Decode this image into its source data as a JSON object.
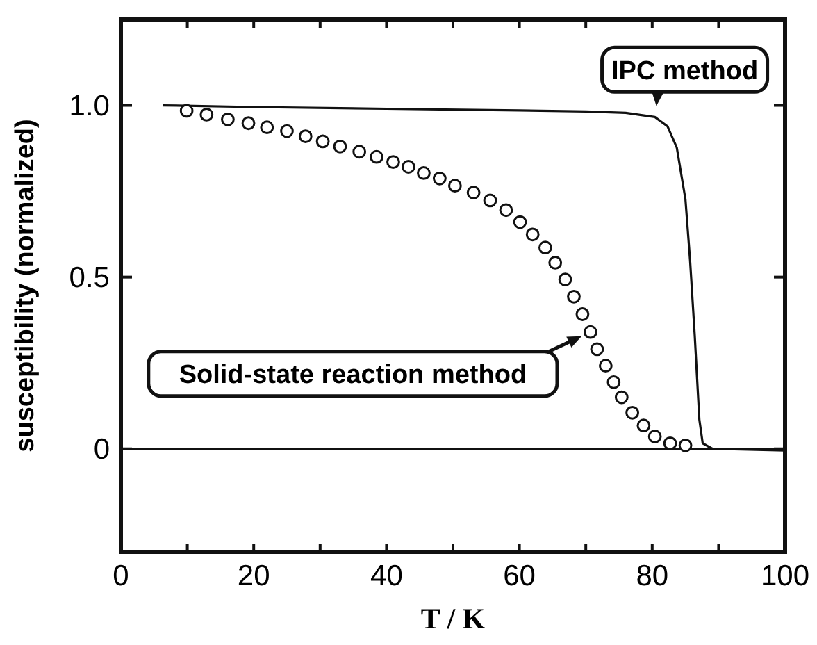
{
  "chart_data": {
    "type": "line",
    "xlabel": "T / K",
    "ylabel": "susceptibility (normalized)",
    "xlim": [
      0,
      100
    ],
    "ylim": [
      -0.3,
      1.25
    ],
    "xticks": [
      0,
      {
        "value": 10,
        "label": null
      },
      20,
      {
        "value": 30,
        "label": null
      },
      40,
      {
        "value": 50,
        "label": null
      },
      60,
      {
        "value": 70,
        "label": null
      },
      80,
      {
        "value": 90,
        "label": null
      },
      100
    ],
    "yticks": [
      0,
      0.5,
      {
        "value": 1,
        "label": "1.0"
      }
    ],
    "series": [
      {
        "color": "#111111",
        "x": [
          6.3,
          20,
          40,
          60,
          70,
          76,
          80.4,
          82.3,
          83.7,
          85.0,
          85.7,
          86.4,
          87.1,
          87.6,
          89.1,
          100
        ],
        "values": [
          1.0,
          0.995,
          0.99,
          0.985,
          0.982,
          0.978,
          0.966,
          0.939,
          0.877,
          0.727,
          0.549,
          0.331,
          0.085,
          0.016,
          0,
          -0.005
        ]
      },
      {
        "type": "scatter",
        "color": "#111111",
        "x": [
          9.9,
          12.9,
          16.1,
          19.2,
          22.0,
          25.0,
          27.8,
          30.4,
          33.0,
          35.9,
          38.5,
          41.0,
          43.3,
          45.6,
          48.0,
          50.3,
          53.1,
          55.6,
          58.0,
          60.1,
          62.0,
          63.9,
          65.4,
          66.9,
          68.2,
          69.5,
          70.7,
          71.7,
          73.0,
          74.2,
          75.4,
          77.0,
          78.7,
          80.4,
          82.7,
          85.0
        ],
        "values": [
          0.984,
          0.973,
          0.959,
          0.948,
          0.936,
          0.925,
          0.91,
          0.895,
          0.88,
          0.865,
          0.85,
          0.835,
          0.821,
          0.803,
          0.787,
          0.766,
          0.746,
          0.723,
          0.695,
          0.66,
          0.624,
          0.586,
          0.542,
          0.493,
          0.443,
          0.392,
          0.34,
          0.29,
          0.242,
          0.194,
          0.15,
          0.105,
          0.068,
          0.036,
          0.016,
          0.01
        ]
      }
    ],
    "ref_lines": [
      {
        "axis": "y",
        "value": 0
      }
    ],
    "annotations": [
      {
        "text": "IPC method",
        "x": 80.5,
        "y": 0.97
      },
      {
        "text": "Solid-state reaction method",
        "x": 70.7,
        "y": 0.34
      }
    ]
  }
}
